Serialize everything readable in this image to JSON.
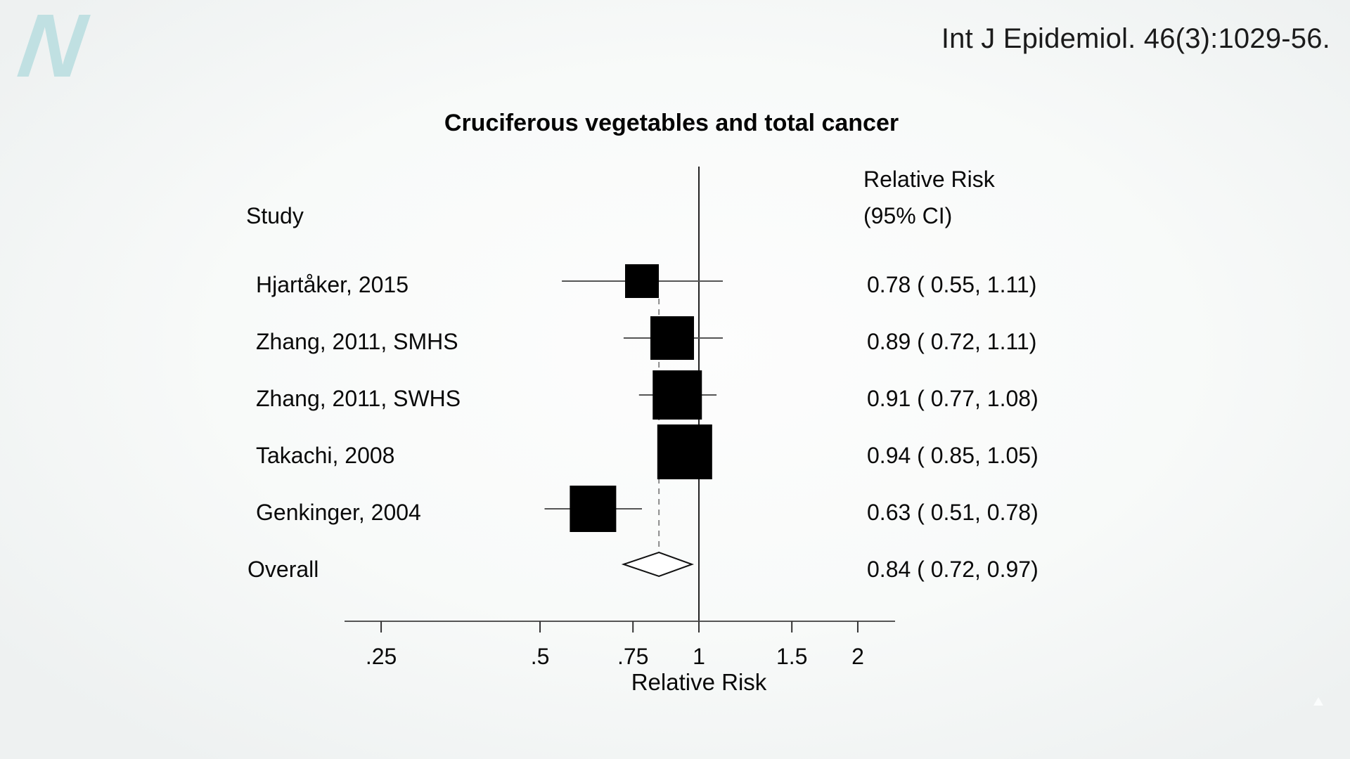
{
  "branding": {
    "logo_letter": "N"
  },
  "header": {
    "citation": "Int J Epidemiol. 46(3):1029-56."
  },
  "chart_data": {
    "type": "forest",
    "title": "Cruciferous vegetables and total cancer",
    "xlabel": "Relative Risk",
    "col_header_study": "Study",
    "col_header_effect_line1": "Relative Risk",
    "col_header_effect_line2": "(95% CI)",
    "x_scale": "log",
    "x_ticks": [
      0.25,
      0.5,
      0.75,
      1,
      1.5,
      2
    ],
    "x_tick_labels": [
      ".25",
      ".5",
      ".75",
      "1",
      "1.5",
      "2"
    ],
    "reference_line": 1,
    "overall_estimate_line": 0.84,
    "studies": [
      {
        "label": "Hjartåker, 2015",
        "rr": 0.78,
        "ci_low": 0.55,
        "ci_high": 1.11,
        "effect_text": "0.78 ( 0.55, 1.11)",
        "box_size": 48
      },
      {
        "label": "Zhang, 2011, SMHS",
        "rr": 0.89,
        "ci_low": 0.72,
        "ci_high": 1.11,
        "effect_text": "0.89 ( 0.72, 1.11)",
        "box_size": 62
      },
      {
        "label": "Zhang, 2011, SWHS",
        "rr": 0.91,
        "ci_low": 0.77,
        "ci_high": 1.08,
        "effect_text": "0.91 ( 0.77, 1.08)",
        "box_size": 70
      },
      {
        "label": "Takachi, 2008",
        "rr": 0.94,
        "ci_low": 0.85,
        "ci_high": 1.05,
        "effect_text": "0.94 ( 0.85, 1.05)",
        "box_size": 78
      },
      {
        "label": "Genkinger, 2004",
        "rr": 0.63,
        "ci_low": 0.51,
        "ci_high": 0.78,
        "effect_text": "0.63 ( 0.51, 0.78)",
        "box_size": 66
      }
    ],
    "overall": {
      "label": "Overall",
      "rr": 0.84,
      "ci_low": 0.72,
      "ci_high": 0.97,
      "effect_text": "0.84 ( 0.72, 0.97)"
    },
    "colors": {
      "square": "#000000",
      "ci_line": "#555555",
      "axis": "#555555",
      "reference_line": "#222222",
      "overall_dashed": "#8a8a8a",
      "diamond_fill": "#ffffff",
      "diamond_stroke": "#111111",
      "logo": "#c0e0e2"
    }
  }
}
